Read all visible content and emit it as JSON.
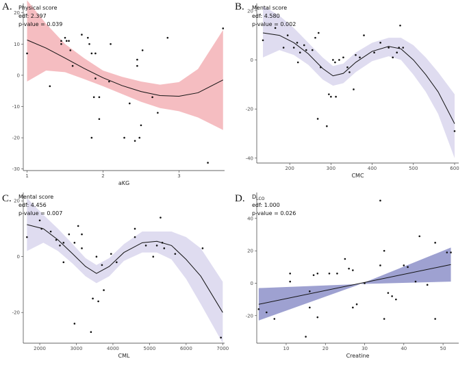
{
  "chart_data": [
    {
      "panel": "A.",
      "type": "scatter",
      "title": "Physical score",
      "stats": [
        "edf: 2.397",
        "p-value = 0.039"
      ],
      "xlabel": "aKG",
      "ylabel": "",
      "xlim": [
        0.95,
        3.6
      ],
      "ylim": [
        -30.5,
        23
      ],
      "xticks": [
        1,
        2,
        3
      ],
      "yticks": [
        20,
        10,
        0,
        -10,
        -20,
        -30
      ],
      "band_color": "#f4b6ba",
      "line_color": "#111111",
      "points": [
        [
          1.0,
          7
        ],
        [
          1.3,
          -3.5
        ],
        [
          1.45,
          10
        ],
        [
          1.45,
          11
        ],
        [
          1.5,
          12
        ],
        [
          1.52,
          11
        ],
        [
          1.55,
          11
        ],
        [
          1.57,
          8
        ],
        [
          1.6,
          3
        ],
        [
          1.72,
          13
        ],
        [
          1.8,
          12
        ],
        [
          1.82,
          10
        ],
        [
          1.85,
          -20
        ],
        [
          1.85,
          7
        ],
        [
          1.88,
          -7
        ],
        [
          1.9,
          -1
        ],
        [
          1.9,
          7
        ],
        [
          1.95,
          -14
        ],
        [
          1.95,
          -7
        ],
        [
          2.08,
          -2
        ],
        [
          2.1,
          10
        ],
        [
          2.28,
          -20
        ],
        [
          2.35,
          -9
        ],
        [
          2.42,
          -21
        ],
        [
          2.45,
          5
        ],
        [
          2.45,
          3
        ],
        [
          2.48,
          -20
        ],
        [
          2.5,
          -16
        ],
        [
          2.52,
          8
        ],
        [
          2.65,
          -7
        ],
        [
          2.72,
          -12
        ],
        [
          2.85,
          12
        ],
        [
          3.38,
          -28
        ],
        [
          3.58,
          15
        ]
      ],
      "fit": [
        [
          1.0,
          11.3
        ],
        [
          1.25,
          8.7
        ],
        [
          1.5,
          5.5
        ],
        [
          1.75,
          2.2
        ],
        [
          2.0,
          -0.8
        ],
        [
          2.25,
          -3.3
        ],
        [
          2.5,
          -5.2
        ],
        [
          2.75,
          -6.5
        ],
        [
          3.0,
          -6.7
        ],
        [
          3.25,
          -5.6
        ],
        [
          3.58,
          -1.5
        ]
      ],
      "band_upper": [
        [
          1.0,
          24
        ],
        [
          1.25,
          16.5
        ],
        [
          1.5,
          10
        ],
        [
          1.75,
          5.5
        ],
        [
          2.0,
          1.5
        ],
        [
          2.25,
          -0.5
        ],
        [
          2.5,
          -2
        ],
        [
          2.75,
          -3
        ],
        [
          3.0,
          -2.2
        ],
        [
          3.25,
          2
        ],
        [
          3.58,
          14.5
        ]
      ],
      "band_lower": [
        [
          1.0,
          -2
        ],
        [
          1.25,
          1.5
        ],
        [
          1.5,
          1
        ],
        [
          1.75,
          -1.2
        ],
        [
          2.0,
          -3.5
        ],
        [
          2.25,
          -6
        ],
        [
          2.5,
          -8.5
        ],
        [
          2.75,
          -10.5
        ],
        [
          3.0,
          -11.5
        ],
        [
          3.25,
          -13.5
        ],
        [
          3.58,
          -17.5
        ]
      ]
    },
    {
      "panel": "B.",
      "type": "scatter",
      "title": "Mental score",
      "stats": [
        "edf: 4.580",
        "p-value = 0.002"
      ],
      "xlabel": "CMC",
      "ylabel": "",
      "xlim": [
        120,
        610
      ],
      "ylim": [
        -42,
        23
      ],
      "xticks": [
        200,
        300,
        400,
        500,
        600
      ],
      "yticks": [
        20,
        0,
        -20,
        -40
      ],
      "band_color": "#dcd8ee",
      "line_color": "#111111",
      "points": [
        [
          135,
          8
        ],
        [
          165,
          13
        ],
        [
          185,
          5
        ],
        [
          195,
          10
        ],
        [
          210,
          5
        ],
        [
          218,
          7
        ],
        [
          220,
          -1
        ],
        [
          225,
          3
        ],
        [
          235,
          6
        ],
        [
          240,
          4
        ],
        [
          255,
          4
        ],
        [
          262,
          9
        ],
        [
          270,
          11
        ],
        [
          268,
          -24
        ],
        [
          275,
          -3
        ],
        [
          290,
          -27
        ],
        [
          295,
          -14
        ],
        [
          300,
          -15
        ],
        [
          305,
          0
        ],
        [
          310,
          -1
        ],
        [
          312,
          -15
        ],
        [
          320,
          0
        ],
        [
          330,
          1
        ],
        [
          340,
          -3
        ],
        [
          345,
          -5
        ],
        [
          355,
          -12
        ],
        [
          360,
          2
        ],
        [
          370,
          1
        ],
        [
          380,
          10
        ],
        [
          405,
          3
        ],
        [
          420,
          7
        ],
        [
          440,
          5
        ],
        [
          450,
          1
        ],
        [
          460,
          3
        ],
        [
          465,
          5
        ],
        [
          468,
          14
        ],
        [
          475,
          5
        ],
        [
          600,
          -29
        ]
      ],
      "fit": [
        [
          135,
          11
        ],
        [
          175,
          10
        ],
        [
          210,
          7
        ],
        [
          245,
          2.5
        ],
        [
          280,
          -3.5
        ],
        [
          305,
          -6.5
        ],
        [
          330,
          -5.5
        ],
        [
          360,
          -1
        ],
        [
          400,
          3.5
        ],
        [
          440,
          5.5
        ],
        [
          470,
          4.5
        ],
        [
          500,
          0
        ],
        [
          530,
          -6
        ],
        [
          560,
          -13
        ],
        [
          600,
          -26
        ]
      ],
      "band_upper": [
        [
          135,
          22
        ],
        [
          175,
          18
        ],
        [
          210,
          13
        ],
        [
          245,
          7
        ],
        [
          280,
          1
        ],
        [
          305,
          -2.5
        ],
        [
          330,
          -1.5
        ],
        [
          360,
          3
        ],
        [
          400,
          7
        ],
        [
          440,
          9
        ],
        [
          470,
          9
        ],
        [
          500,
          6
        ],
        [
          530,
          1
        ],
        [
          560,
          -5
        ],
        [
          600,
          -14
        ]
      ],
      "band_lower": [
        [
          135,
          1
        ],
        [
          175,
          4
        ],
        [
          210,
          2
        ],
        [
          245,
          -2
        ],
        [
          280,
          -8
        ],
        [
          305,
          -10.5
        ],
        [
          330,
          -9.5
        ],
        [
          360,
          -5
        ],
        [
          400,
          -0.5
        ],
        [
          440,
          1.5
        ],
        [
          470,
          0
        ],
        [
          500,
          -6
        ],
        [
          530,
          -13
        ],
        [
          560,
          -22
        ],
        [
          600,
          -40
        ]
      ]
    },
    {
      "panel": "C.",
      "type": "scatter",
      "title": "Mental score",
      "stats": [
        "edf: 4.456",
        "p-value = 0.007"
      ],
      "xlabel": "CML",
      "ylabel": "",
      "xlim": [
        1550,
        7050
      ],
      "ylim": [
        -31,
        23
      ],
      "xticks": [
        2000,
        3000,
        4000,
        5000,
        6000,
        7000
      ],
      "yticks": [
        20,
        0,
        -20
      ],
      "band_color": "#dcd8ee",
      "line_color": "#111111",
      "points": [
        [
          1650,
          7
        ],
        [
          2000,
          13
        ],
        [
          2050,
          10
        ],
        [
          2300,
          9
        ],
        [
          2450,
          6
        ],
        [
          2550,
          4
        ],
        [
          2650,
          -2
        ],
        [
          2650,
          5
        ],
        [
          2800,
          8
        ],
        [
          2950,
          5
        ],
        [
          2950,
          -24
        ],
        [
          3050,
          11
        ],
        [
          3150,
          3
        ],
        [
          3150,
          8
        ],
        [
          3400,
          -27
        ],
        [
          3450,
          -15
        ],
        [
          3550,
          0
        ],
        [
          3600,
          -16
        ],
        [
          3700,
          -3
        ],
        [
          3750,
          -12
        ],
        [
          3950,
          1
        ],
        [
          4100,
          -2
        ],
        [
          4600,
          10
        ],
        [
          4600,
          7
        ],
        [
          4900,
          4
        ],
        [
          5100,
          0
        ],
        [
          5200,
          4
        ],
        [
          5300,
          14
        ],
        [
          5350,
          5
        ],
        [
          5400,
          3
        ],
        [
          5700,
          1
        ],
        [
          6450,
          3
        ],
        [
          6950,
          -29
        ]
      ],
      "fit": [
        [
          1650,
          11.5
        ],
        [
          2100,
          10
        ],
        [
          2500,
          6
        ],
        [
          2900,
          1
        ],
        [
          3250,
          -3.5
        ],
        [
          3550,
          -6
        ],
        [
          3900,
          -3.5
        ],
        [
          4300,
          1.5
        ],
        [
          4800,
          5
        ],
        [
          5200,
          5.5
        ],
        [
          5600,
          4
        ],
        [
          6000,
          -1
        ],
        [
          6400,
          -7
        ],
        [
          7000,
          -20
        ]
      ],
      "band_upper": [
        [
          1650,
          21
        ],
        [
          2100,
          15
        ],
        [
          2500,
          10
        ],
        [
          2900,
          4.5
        ],
        [
          3250,
          -0.5
        ],
        [
          3550,
          -3
        ],
        [
          3900,
          -0.5
        ],
        [
          4300,
          4.5
        ],
        [
          4800,
          9
        ],
        [
          5200,
          9
        ],
        [
          5600,
          9
        ],
        [
          6000,
          7
        ],
        [
          6400,
          3
        ],
        [
          7000,
          -9
        ]
      ],
      "band_lower": [
        [
          1650,
          2
        ],
        [
          2100,
          5
        ],
        [
          2500,
          2
        ],
        [
          2900,
          -2.5
        ],
        [
          3250,
          -7
        ],
        [
          3550,
          -9.5
        ],
        [
          3900,
          -7
        ],
        [
          4300,
          -1.5
        ],
        [
          4800,
          1.5
        ],
        [
          5200,
          1.5
        ],
        [
          5600,
          -1
        ],
        [
          6000,
          -8
        ],
        [
          6400,
          -17
        ],
        [
          7000,
          -31
        ]
      ]
    },
    {
      "panel": "D.",
      "type": "scatter",
      "title": "DLCO",
      "stats": [
        "edf: 1.000",
        "p-value = 0.026"
      ],
      "xlabel": "Creatine",
      "ylabel": "",
      "xlim": [
        2.5,
        54
      ],
      "ylim": [
        -37,
        56
      ],
      "xticks": [
        10,
        20,
        30,
        40,
        50
      ],
      "yticks": [
        40,
        20,
        0,
        -20
      ],
      "band_color": "#9497cc",
      "line_color": "#111111",
      "points": [
        [
          3,
          -16
        ],
        [
          5,
          -18
        ],
        [
          7,
          -22
        ],
        [
          11,
          1
        ],
        [
          11,
          6
        ],
        [
          15,
          -33
        ],
        [
          16,
          -15
        ],
        [
          16,
          -5
        ],
        [
          17,
          5
        ],
        [
          18,
          -21
        ],
        [
          18,
          6
        ],
        [
          21,
          6
        ],
        [
          23,
          6
        ],
        [
          25,
          15
        ],
        [
          26,
          9
        ],
        [
          27,
          -15
        ],
        [
          27,
          8
        ],
        [
          28,
          -13
        ],
        [
          30,
          0
        ],
        [
          34,
          11
        ],
        [
          35,
          -22
        ],
        [
          35,
          20
        ],
        [
          36,
          -6
        ],
        [
          37,
          -8
        ],
        [
          38,
          -10
        ],
        [
          40,
          11
        ],
        [
          41,
          10
        ],
        [
          43,
          1
        ],
        [
          44,
          29
        ],
        [
          46,
          -1
        ],
        [
          48,
          -22
        ],
        [
          48,
          25
        ],
        [
          51,
          19
        ],
        [
          52,
          19
        ],
        [
          34,
          51
        ]
      ],
      "fit": [
        [
          3,
          -13
        ],
        [
          52,
          11.5
        ]
      ],
      "band_upper": [
        [
          3,
          -3
        ],
        [
          29,
          -0.5
        ],
        [
          52,
          22
        ]
      ],
      "band_lower": [
        [
          3,
          -23
        ],
        [
          29,
          -0.5
        ],
        [
          52,
          1
        ]
      ]
    }
  ]
}
